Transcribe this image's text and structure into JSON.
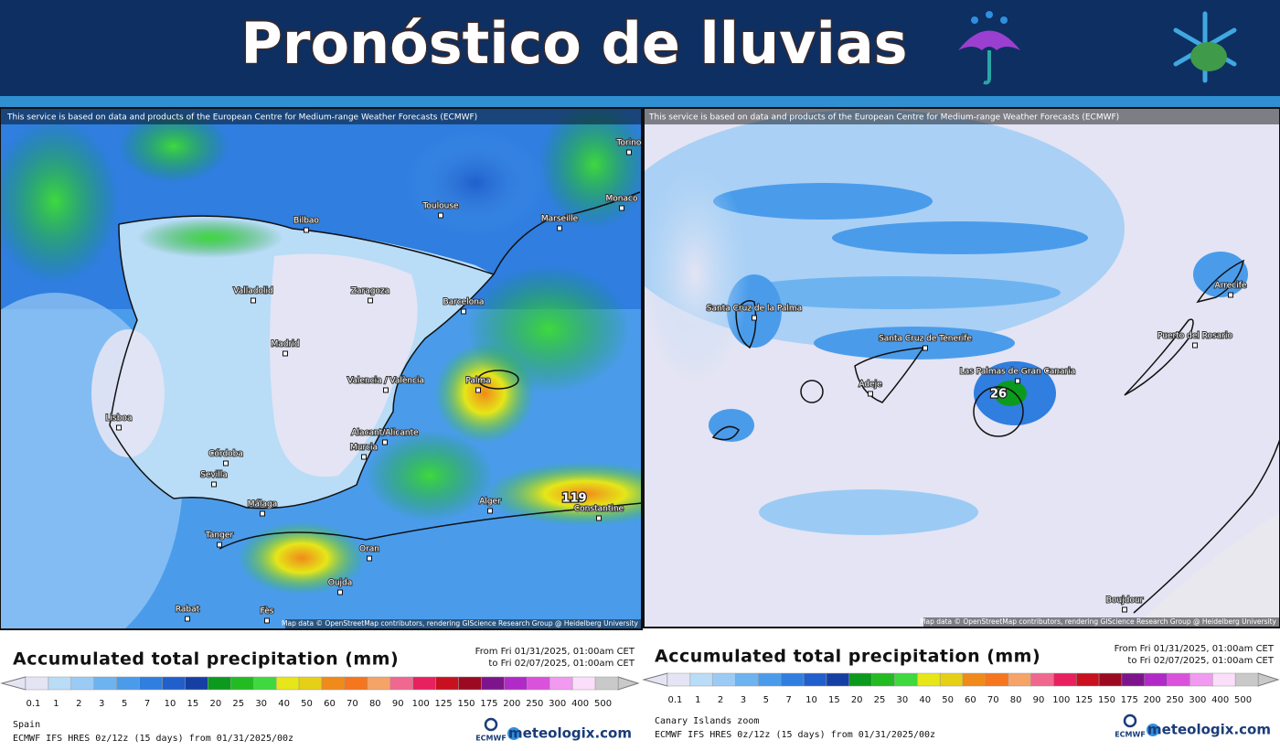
{
  "header": {
    "title": "Pronóstico de lluvias"
  },
  "legend_scale": {
    "ticks": [
      "0.1",
      "1",
      "2",
      "3",
      "5",
      "7",
      "10",
      "15",
      "20",
      "25",
      "30",
      "40",
      "50",
      "60",
      "70",
      "80",
      "90",
      "100",
      "125",
      "150",
      "175",
      "200",
      "250",
      "300",
      "400",
      "500"
    ],
    "colors": [
      "#e4e4f4",
      "#b9dcf7",
      "#9bcbf5",
      "#6db3f0",
      "#4a9ceb",
      "#2f7ee0",
      "#205fcc",
      "#163fa3",
      "#0c9a1e",
      "#22bb22",
      "#3fd93f",
      "#e6e619",
      "#e6cf17",
      "#f08a1a",
      "#f5761e",
      "#f5a367",
      "#f0688f",
      "#e8205f",
      "#c8101f",
      "#9c0a22",
      "#7e148c",
      "#b12ac7",
      "#da52dc",
      "#f19af0",
      "#fbdffa",
      "#c9c9c9"
    ]
  },
  "panels": [
    {
      "attribution": "This service is based on data and products of the European Centre for Medium-range Weather Forecasts (ECMWF)",
      "labels": [
        "Toulouse",
        "Bilbao",
        "Marseille",
        "Monaco",
        "Torino",
        "Valladolid",
        "Zaragoza",
        "Barcelona",
        "Madrid",
        "Palma",
        "Valencia / València",
        "Lisboa",
        "Alacant/Alicante",
        "Murcia",
        "Córdoba",
        "Sevilla",
        "Málaga",
        "Alger",
        "Constantine",
        "Tanger",
        "Oran",
        "Oujda",
        "Rabat",
        "Fès"
      ],
      "max_label": "119",
      "copyright": "Map data © OpenStreetMap contributors, rendering GIScience Research Group @ Heidelberg University",
      "legend_title": "Accumulated total precipitation (mm)",
      "period": [
        "From Fri 01/31/2025, 01:00am CET",
        "to Fri 02/07/2025, 01:00am CET"
      ],
      "region": "Spain",
      "model": "ECMWF IFS HRES 0z/12z (15 days) from 01/31/2025/00z",
      "ecmwf": "ECMWF",
      "brand": "meteologix.com"
    },
    {
      "attribution": "This service is based on data and products of the European Centre for Medium-range Weather Forecasts (ECMWF)",
      "labels": [
        "Santa Cruz de la Palma",
        "Santa Cruz de Tenerife",
        "Adeje",
        "Las Palmas de Gran Canaria",
        "Puerto del Rosario",
        "Arrecife",
        "Boujdour"
      ],
      "max_label": "26",
      "copyright": "Map data © OpenStreetMap contributors, rendering GIScience Research Group @ Heidelberg University",
      "legend_title": "Accumulated total precipitation (mm)",
      "period": [
        "From Fri 01/31/2025, 01:00am CET",
        "to Fri 02/07/2025, 01:00am CET"
      ],
      "region": "Canary Islands zoom",
      "model": "ECMWF IFS HRES 0z/12z (15 days) from 01/31/2025/00z",
      "ecmwf": "ECMWF",
      "brand": "meteologix.com"
    }
  ]
}
